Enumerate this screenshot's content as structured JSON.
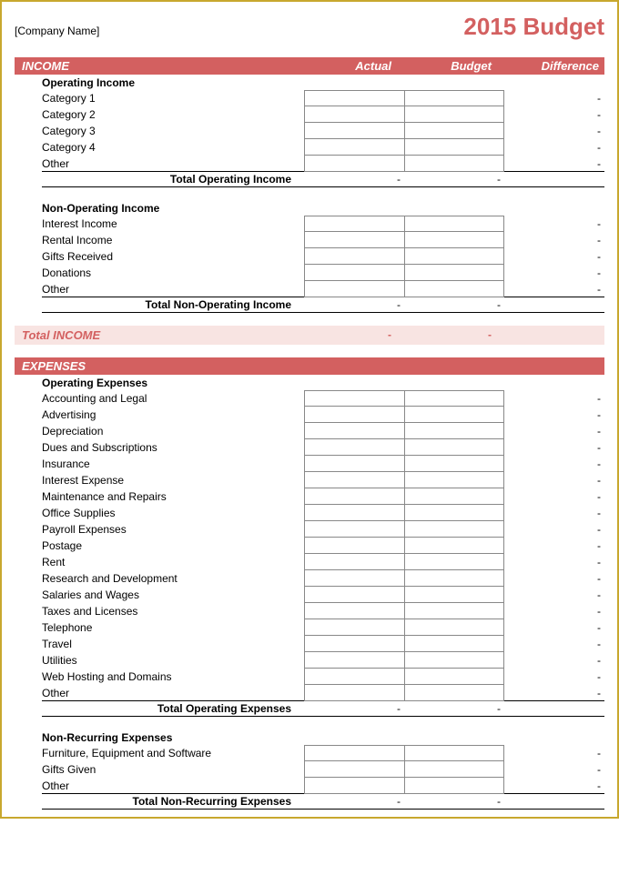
{
  "colors": {
    "accent": "#d36060",
    "accent_light": "#f8e4e2",
    "border_frame": "#c8a82e",
    "cell_border": "#888888",
    "text": "#000000"
  },
  "header": {
    "company_name": "[Company Name]",
    "title": "2015 Budget"
  },
  "columns": {
    "actual": "Actual",
    "budget": "Budget",
    "difference": "Difference"
  },
  "income": {
    "band_label": "INCOME",
    "operating": {
      "title": "Operating Income",
      "rows": [
        {
          "label": "Category 1",
          "actual": "",
          "budget": "",
          "difference": "-"
        },
        {
          "label": "Category 2",
          "actual": "",
          "budget": "",
          "difference": "-"
        },
        {
          "label": "Category 3",
          "actual": "",
          "budget": "",
          "difference": "-"
        },
        {
          "label": "Category 4",
          "actual": "",
          "budget": "",
          "difference": "-"
        },
        {
          "label": "Other",
          "actual": "",
          "budget": "",
          "difference": "-"
        }
      ],
      "subtotal": {
        "label": "Total Operating Income",
        "actual": "-",
        "budget": "-",
        "difference": ""
      }
    },
    "non_operating": {
      "title": "Non-Operating Income",
      "rows": [
        {
          "label": "Interest Income",
          "actual": "",
          "budget": "",
          "difference": "-"
        },
        {
          "label": "Rental Income",
          "actual": "",
          "budget": "",
          "difference": "-"
        },
        {
          "label": "Gifts Received",
          "actual": "",
          "budget": "",
          "difference": "-"
        },
        {
          "label": "Donations",
          "actual": "",
          "budget": "",
          "difference": "-"
        },
        {
          "label": "Other",
          "actual": "",
          "budget": "",
          "difference": "-"
        }
      ],
      "subtotal": {
        "label": "Total Non-Operating Income",
        "actual": "-",
        "budget": "-",
        "difference": ""
      }
    },
    "total": {
      "label": "Total INCOME",
      "actual": "-",
      "budget": "-",
      "difference": ""
    }
  },
  "expenses": {
    "band_label": "EXPENSES",
    "operating": {
      "title": "Operating Expenses",
      "rows": [
        {
          "label": "Accounting and Legal",
          "actual": "",
          "budget": "",
          "difference": "-"
        },
        {
          "label": "Advertising",
          "actual": "",
          "budget": "",
          "difference": "-"
        },
        {
          "label": "Depreciation",
          "actual": "",
          "budget": "",
          "difference": "-"
        },
        {
          "label": "Dues and Subscriptions",
          "actual": "",
          "budget": "",
          "difference": "-"
        },
        {
          "label": "Insurance",
          "actual": "",
          "budget": "",
          "difference": "-"
        },
        {
          "label": "Interest Expense",
          "actual": "",
          "budget": "",
          "difference": "-"
        },
        {
          "label": "Maintenance and Repairs",
          "actual": "",
          "budget": "",
          "difference": "-"
        },
        {
          "label": "Office Supplies",
          "actual": "",
          "budget": "",
          "difference": "-"
        },
        {
          "label": "Payroll Expenses",
          "actual": "",
          "budget": "",
          "difference": "-"
        },
        {
          "label": "Postage",
          "actual": "",
          "budget": "",
          "difference": "-"
        },
        {
          "label": "Rent",
          "actual": "",
          "budget": "",
          "difference": "-"
        },
        {
          "label": "Research and Development",
          "actual": "",
          "budget": "",
          "difference": "-"
        },
        {
          "label": "Salaries and Wages",
          "actual": "",
          "budget": "",
          "difference": "-"
        },
        {
          "label": "Taxes and Licenses",
          "actual": "",
          "budget": "",
          "difference": "-"
        },
        {
          "label": "Telephone",
          "actual": "",
          "budget": "",
          "difference": "-"
        },
        {
          "label": "Travel",
          "actual": "",
          "budget": "",
          "difference": "-"
        },
        {
          "label": "Utilities",
          "actual": "",
          "budget": "",
          "difference": "-"
        },
        {
          "label": "Web Hosting and Domains",
          "actual": "",
          "budget": "",
          "difference": "-"
        },
        {
          "label": "Other",
          "actual": "",
          "budget": "",
          "difference": "-"
        }
      ],
      "subtotal": {
        "label": "Total Operating Expenses",
        "actual": "-",
        "budget": "-",
        "difference": ""
      }
    },
    "non_recurring": {
      "title": "Non-Recurring Expenses",
      "rows": [
        {
          "label": "Furniture, Equipment and Software",
          "actual": "",
          "budget": "",
          "difference": "-"
        },
        {
          "label": "Gifts Given",
          "actual": "",
          "budget": "",
          "difference": "-"
        },
        {
          "label": "Other",
          "actual": "",
          "budget": "",
          "difference": "-"
        }
      ],
      "subtotal": {
        "label": "Total Non-Recurring Expenses",
        "actual": "-",
        "budget": "-",
        "difference": ""
      }
    }
  }
}
